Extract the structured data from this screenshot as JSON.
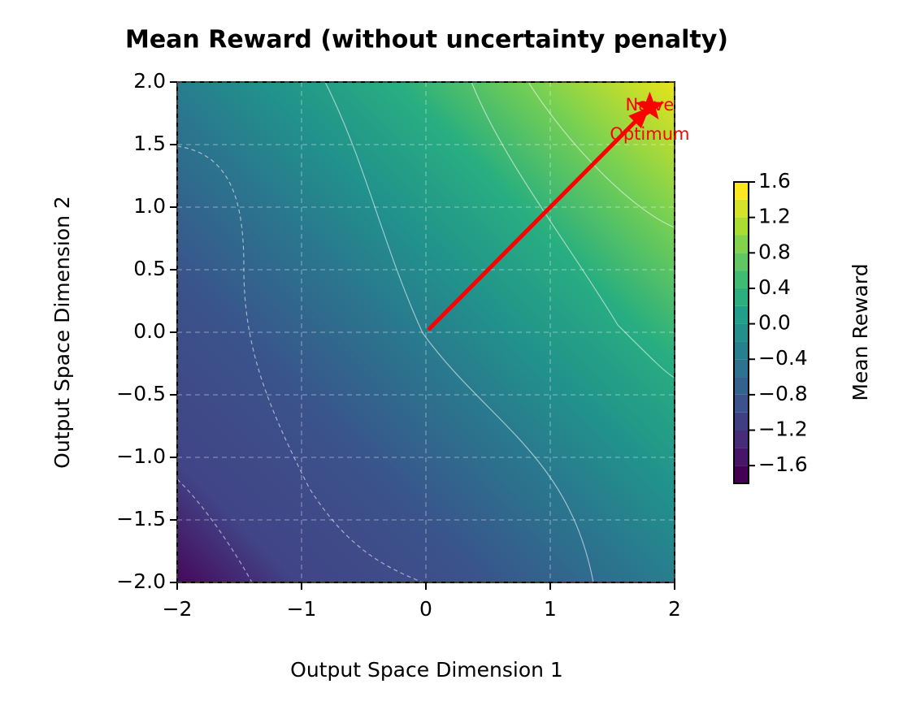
{
  "chart_data": {
    "type": "contourf",
    "title": "Mean Reward (without uncertainty penalty)",
    "x_label": "Output Space Dimension 1",
    "y_label": "Output Space Dimension 2",
    "xlim": [
      -2,
      2
    ],
    "ylim": [
      -2,
      2
    ],
    "xticks": [
      {
        "value": -2,
        "label": "−2"
      },
      {
        "value": -1,
        "label": "−1"
      },
      0,
      1,
      2
    ],
    "yticks": [
      {
        "value": -2,
        "label": "−2.0"
      },
      {
        "value": -1.5,
        "label": "−1.5"
      },
      {
        "value": -1,
        "label": "−1.0"
      },
      {
        "value": -0.5,
        "label": "−0.5"
      },
      {
        "value": 0,
        "label": "0.0"
      },
      {
        "value": 0.5,
        "label": "0.5"
      },
      {
        "value": 1,
        "label": "1.0"
      },
      {
        "value": 1.5,
        "label": "1.5"
      },
      {
        "value": 2,
        "label": "2.0"
      }
    ],
    "grid": true,
    "colormap": "viridis",
    "colorbar_label": "Mean Reward",
    "clim": [
      -1.8,
      1.6
    ],
    "levels": [
      -1.8,
      -1.6,
      -1.4,
      -1.2,
      -1.0,
      -0.8,
      -0.6,
      -0.4,
      -0.2,
      0.0,
      0.2,
      0.4,
      0.6,
      0.8,
      1.0,
      1.2,
      1.4,
      1.6
    ],
    "colorbar_ticks": [
      {
        "value": -1.6,
        "label": "−1.6"
      },
      {
        "value": -1.2,
        "label": "−1.2"
      },
      {
        "value": -0.8,
        "label": "−0.8"
      },
      {
        "value": -0.4,
        "label": "−0.4"
      },
      {
        "value": 0,
        "label": "0.0"
      },
      0.4,
      0.8,
      1.2,
      1.6
    ],
    "arrow": {
      "color": "#ff0000",
      "x": [
        0.03,
        1.8
      ],
      "y": [
        0.03,
        1.8
      ]
    },
    "annotation": [
      "Naive",
      "Optimum"
    ]
  }
}
